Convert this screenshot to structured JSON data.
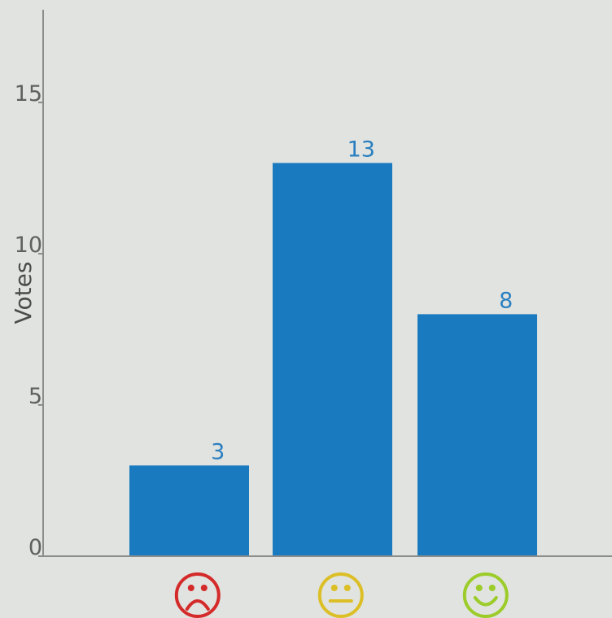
{
  "chart_data": {
    "type": "bar",
    "categories": [
      "sad",
      "neutral",
      "happy"
    ],
    "values": [
      3,
      13,
      8
    ],
    "title": "",
    "xlabel": "",
    "ylabel": "Votes",
    "ylim": [
      0,
      18
    ],
    "yticks": [
      0,
      5,
      10,
      15
    ],
    "data_labels": [
      "3",
      "13",
      "8"
    ],
    "x_tick_icons": [
      "sad-face-icon",
      "neutral-face-icon",
      "happy-face-icon"
    ],
    "grid": false,
    "legend": "none"
  },
  "colors": {
    "bar": "#1a7abf",
    "value_label": "#2a7fc0",
    "axis": "#8a8d8b",
    "tick_text": "#5f6160",
    "sad_icon": "#d42a2a",
    "neutral_icon": "#dcbf26",
    "happy_icon": "#9ccc2a"
  }
}
